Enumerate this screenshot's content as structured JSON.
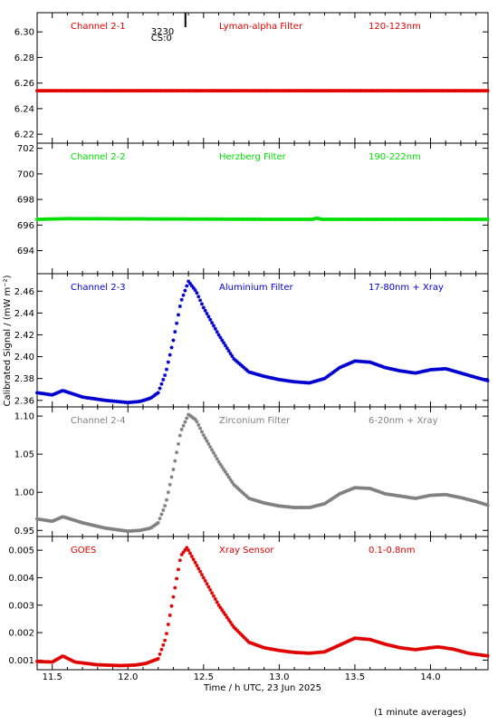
{
  "chart_data": {
    "type": "scatter",
    "x_label": "Time / h UTC, 23 Jun 2025",
    "y_label": "Calibrated Signal / (mW m⁻²)",
    "footer_note": "(1 minute averages)",
    "xlim": [
      11.4,
      14.38
    ],
    "x_ticks": [
      11.5,
      12.0,
      12.5,
      13.0,
      13.5,
      14.0
    ],
    "x_tick_labels": [
      "11.5",
      "12.0",
      "12.5",
      "13.0",
      "13.5",
      "14.0"
    ],
    "marker_annotation": {
      "x": 12.38,
      "lines": [
        "3230",
        "CS:0"
      ]
    },
    "panels": [
      {
        "id": "ch2-1",
        "labels": [
          "Channel 2-1",
          "Lyman-alpha Filter",
          "120-123nm"
        ],
        "color": "#e00000",
        "ylim": [
          6.213,
          6.315
        ],
        "yticks": [
          6.22,
          6.24,
          6.26,
          6.28,
          6.3
        ],
        "ytick_labels": [
          "6.22",
          "6.24",
          "6.26",
          "6.28",
          "6.30"
        ],
        "profile": [
          [
            11.4,
            6.254
          ],
          [
            14.38,
            6.254
          ]
        ]
      },
      {
        "id": "ch2-2",
        "labels": [
          "Channel 2-2",
          "Herzberg Filter",
          "190-222nm"
        ],
        "color": "#00e000",
        "ylim": [
          692.2,
          702.4
        ],
        "yticks": [
          694,
          696,
          698,
          700,
          702
        ],
        "ytick_labels": [
          "694",
          "696",
          "698",
          "700",
          "702"
        ],
        "profile": [
          [
            11.4,
            696.45
          ],
          [
            11.6,
            696.5
          ],
          [
            13.0,
            696.45
          ],
          [
            13.22,
            696.45
          ],
          [
            13.25,
            696.55
          ],
          [
            13.28,
            696.45
          ],
          [
            14.38,
            696.45
          ]
        ]
      },
      {
        "id": "ch2-3",
        "labels": [
          "Channel 2-3",
          "Aluminium Filter",
          "17-80nm + Xray"
        ],
        "color": "#0000d0",
        "ylim": [
          2.354,
          2.476
        ],
        "yticks": [
          2.36,
          2.38,
          2.4,
          2.42,
          2.44,
          2.46
        ],
        "ytick_labels": [
          "2.36",
          "2.38",
          "2.40",
          "2.42",
          "2.44",
          "2.46"
        ],
        "profile": [
          [
            11.4,
            2.367
          ],
          [
            11.5,
            2.365
          ],
          [
            11.57,
            2.369
          ],
          [
            11.7,
            2.363
          ],
          [
            11.85,
            2.36
          ],
          [
            12.0,
            2.358
          ],
          [
            12.08,
            2.359
          ],
          [
            12.15,
            2.362
          ],
          [
            12.2,
            2.367
          ],
          [
            12.25,
            2.385
          ],
          [
            12.3,
            2.415
          ],
          [
            12.35,
            2.45
          ],
          [
            12.4,
            2.469
          ],
          [
            12.45,
            2.46
          ],
          [
            12.5,
            2.445
          ],
          [
            12.6,
            2.42
          ],
          [
            12.7,
            2.398
          ],
          [
            12.8,
            2.386
          ],
          [
            12.9,
            2.382
          ],
          [
            13.0,
            2.379
          ],
          [
            13.1,
            2.377
          ],
          [
            13.2,
            2.376
          ],
          [
            13.3,
            2.38
          ],
          [
            13.4,
            2.39
          ],
          [
            13.5,
            2.396
          ],
          [
            13.6,
            2.395
          ],
          [
            13.7,
            2.39
          ],
          [
            13.8,
            2.387
          ],
          [
            13.9,
            2.385
          ],
          [
            14.0,
            2.388
          ],
          [
            14.1,
            2.389
          ],
          [
            14.2,
            2.385
          ],
          [
            14.3,
            2.381
          ],
          [
            14.38,
            2.378
          ]
        ]
      },
      {
        "id": "ch2-4",
        "labels": [
          "Channel 2-4",
          "Zirconium Filter",
          "6-20nm + Xray"
        ],
        "color": "#808080",
        "ylim": [
          0.942,
          1.112
        ],
        "yticks": [
          0.95,
          1.0,
          1.05,
          1.1
        ],
        "ytick_labels": [
          "0.95",
          "1.00",
          "1.05",
          "1.10"
        ],
        "profile": [
          [
            11.4,
            0.965
          ],
          [
            11.5,
            0.962
          ],
          [
            11.57,
            0.968
          ],
          [
            11.7,
            0.96
          ],
          [
            11.85,
            0.953
          ],
          [
            12.0,
            0.949
          ],
          [
            12.08,
            0.95
          ],
          [
            12.15,
            0.953
          ],
          [
            12.2,
            0.96
          ],
          [
            12.25,
            0.985
          ],
          [
            12.3,
            1.03
          ],
          [
            12.35,
            1.08
          ],
          [
            12.4,
            1.102
          ],
          [
            12.45,
            1.095
          ],
          [
            12.5,
            1.075
          ],
          [
            12.6,
            1.04
          ],
          [
            12.7,
            1.01
          ],
          [
            12.8,
            0.992
          ],
          [
            12.9,
            0.986
          ],
          [
            13.0,
            0.982
          ],
          [
            13.1,
            0.98
          ],
          [
            13.2,
            0.98
          ],
          [
            13.3,
            0.985
          ],
          [
            13.4,
            0.998
          ],
          [
            13.5,
            1.006
          ],
          [
            13.6,
            1.005
          ],
          [
            13.7,
            0.998
          ],
          [
            13.8,
            0.995
          ],
          [
            13.9,
            0.992
          ],
          [
            14.0,
            0.996
          ],
          [
            14.1,
            0.997
          ],
          [
            14.2,
            0.993
          ],
          [
            14.3,
            0.988
          ],
          [
            14.38,
            0.983
          ]
        ]
      },
      {
        "id": "goes",
        "labels": [
          "GOES",
          "Xray Sensor",
          "0.1-0.8nm"
        ],
        "color": "#e00000",
        "ylim": [
          0.00065,
          0.0055
        ],
        "yticks": [
          0.001,
          0.002,
          0.003,
          0.004,
          0.005
        ],
        "ytick_labels": [
          "0.001",
          "0.002",
          "0.003",
          "0.004",
          "0.005"
        ],
        "profile": [
          [
            11.4,
            0.00095
          ],
          [
            11.5,
            0.00093
          ],
          [
            11.57,
            0.00115
          ],
          [
            11.65,
            0.00093
          ],
          [
            11.8,
            0.00083
          ],
          [
            11.95,
            0.0008
          ],
          [
            12.05,
            0.00082
          ],
          [
            12.12,
            0.00088
          ],
          [
            12.2,
            0.00105
          ],
          [
            12.25,
            0.0018
          ],
          [
            12.3,
            0.0033
          ],
          [
            12.35,
            0.0048
          ],
          [
            12.39,
            0.0051
          ],
          [
            12.45,
            0.0045
          ],
          [
            12.5,
            0.004
          ],
          [
            12.6,
            0.003
          ],
          [
            12.7,
            0.0022
          ],
          [
            12.8,
            0.00165
          ],
          [
            12.9,
            0.00145
          ],
          [
            13.0,
            0.00135
          ],
          [
            13.1,
            0.00128
          ],
          [
            13.2,
            0.00125
          ],
          [
            13.3,
            0.0013
          ],
          [
            13.4,
            0.00155
          ],
          [
            13.5,
            0.0018
          ],
          [
            13.6,
            0.00175
          ],
          [
            13.7,
            0.00158
          ],
          [
            13.8,
            0.00145
          ],
          [
            13.9,
            0.00138
          ],
          [
            14.0,
            0.00145
          ],
          [
            14.05,
            0.00148
          ],
          [
            14.15,
            0.0014
          ],
          [
            14.25,
            0.00125
          ],
          [
            14.38,
            0.00115
          ]
        ]
      }
    ]
  }
}
